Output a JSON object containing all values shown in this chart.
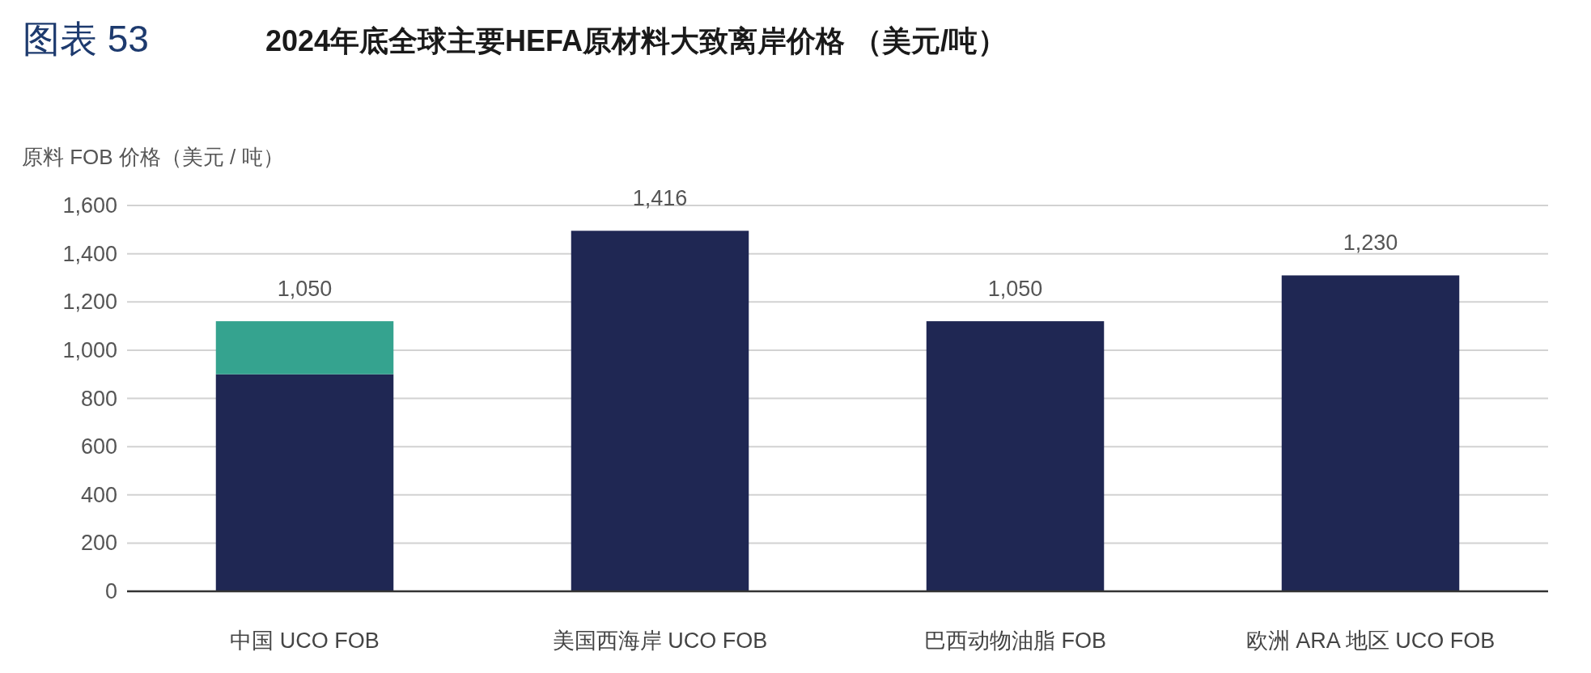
{
  "chart_data": {
    "type": "bar",
    "title": "2024年底全球主要HEFA原材料大致离岸价格 （美元/吨）",
    "ylabel": "原料 FOB 价格（美元 / 吨）",
    "annotations": [
      "图表 53",
      {
        "text": "1,050",
        "x": "中国 UCO FOB",
        "y": 1120
      },
      {
        "text": "1,416",
        "x": "美国西海岸 UCO FOB",
        "y": 1495
      },
      {
        "text": "1,050",
        "x": "巴西动物油脂 FOB",
        "y": 1120
      },
      {
        "text": "1,230",
        "x": "欧洲 ARA 地区 UCO FOB",
        "y": 1310
      }
    ],
    "categories": [
      "中国 UCO FOB",
      "美国西海岸 UCO FOB",
      "巴西动物油脂 FOB",
      "欧洲 ARA 地区 UCO FOB"
    ],
    "series": [
      {
        "color": "#1f2753",
        "values": [
          900,
          1495,
          1120,
          1310
        ]
      },
      {
        "color": "#35a38f",
        "values": [
          220,
          null,
          null,
          null
        ]
      }
    ],
    "stacked": true,
    "ylim": [
      0,
      1600
    ],
    "yticks": [
      0,
      200,
      400,
      600,
      800,
      {
        "value": 1000,
        "label": "1,000"
      },
      {
        "value": 1200,
        "label": "1,200"
      },
      {
        "value": 1400,
        "label": "1,400"
      },
      {
        "value": 1600,
        "label": "1,600"
      }
    ],
    "grid": "y"
  }
}
